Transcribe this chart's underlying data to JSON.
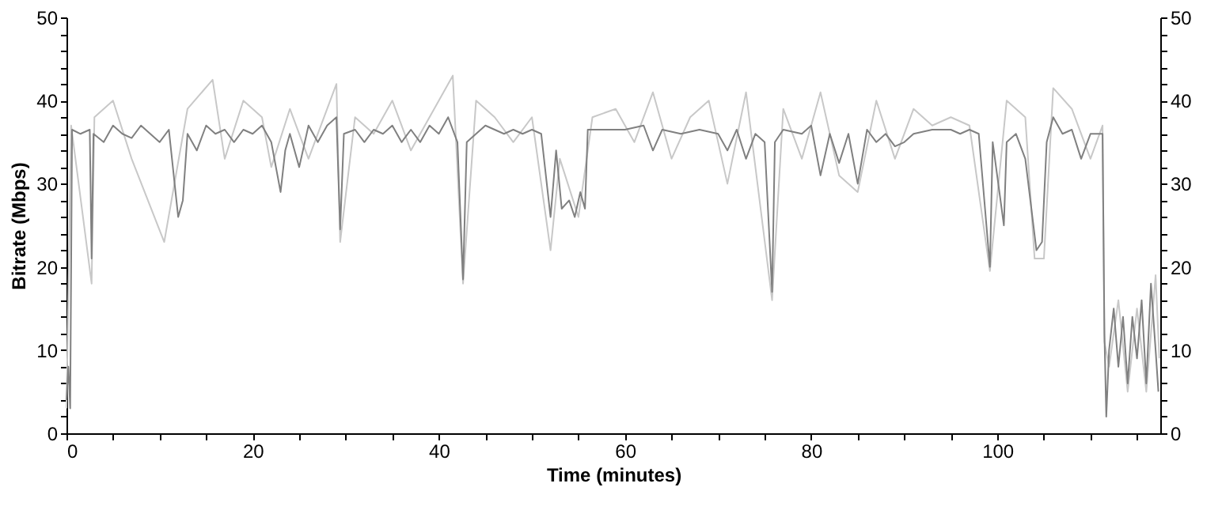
{
  "chart_data": {
    "type": "line",
    "xlabel": "Time (minutes)",
    "ylabel": "Bitrate (Mbps)",
    "xlim": [
      0,
      117.5
    ],
    "ylim": [
      0,
      50
    ],
    "y2lim": [
      0,
      50
    ],
    "xticks": [
      0,
      {
        "value": 5,
        "label": null
      },
      {
        "value": 10,
        "label": null
      },
      {
        "value": 15,
        "label": null
      },
      20,
      {
        "value": 25,
        "label": null
      },
      {
        "value": 30,
        "label": null
      },
      {
        "value": 35,
        "label": null
      },
      40,
      {
        "value": 45,
        "label": null
      },
      {
        "value": 50,
        "label": null
      },
      {
        "value": 55,
        "label": null
      },
      60,
      {
        "value": 65,
        "label": null
      },
      {
        "value": 70,
        "label": null
      },
      {
        "value": 75,
        "label": null
      },
      80,
      {
        "value": 85,
        "label": null
      },
      {
        "value": 90,
        "label": null
      },
      {
        "value": 95,
        "label": null
      },
      100,
      {
        "value": 105,
        "label": null
      },
      {
        "value": 110,
        "label": null
      },
      {
        "value": 115,
        "label": null
      }
    ],
    "yticks": [
      0,
      {
        "value": 2,
        "label": null
      },
      {
        "value": 4,
        "label": null
      },
      {
        "value": 6,
        "label": null
      },
      {
        "value": 8,
        "label": null
      },
      10,
      {
        "value": 12,
        "label": null
      },
      {
        "value": 14,
        "label": null
      },
      {
        "value": 16,
        "label": null
      },
      {
        "value": 18,
        "label": null
      },
      20,
      {
        "value": 22,
        "label": null
      },
      {
        "value": 24,
        "label": null
      },
      {
        "value": 26,
        "label": null
      },
      {
        "value": 28,
        "label": null
      },
      30,
      {
        "value": 32,
        "label": null
      },
      {
        "value": 34,
        "label": null
      },
      {
        "value": 36,
        "label": null
      },
      {
        "value": 38,
        "label": null
      },
      40,
      {
        "value": 42,
        "label": null
      },
      {
        "value": 44,
        "label": null
      },
      {
        "value": 46,
        "label": null
      },
      {
        "value": 48,
        "label": null
      },
      50
    ],
    "y2ticks": [
      0,
      {
        "value": 2,
        "label": null
      },
      {
        "value": 4,
        "label": null
      },
      {
        "value": 6,
        "label": null
      },
      {
        "value": 8,
        "label": null
      },
      10,
      {
        "value": 12,
        "label": null
      },
      {
        "value": 14,
        "label": null
      },
      {
        "value": 16,
        "label": null
      },
      {
        "value": 18,
        "label": null
      },
      20,
      {
        "value": 22,
        "label": null
      },
      {
        "value": 24,
        "label": null
      },
      {
        "value": 26,
        "label": null
      },
      {
        "value": 28,
        "label": null
      },
      30,
      {
        "value": 32,
        "label": null
      },
      {
        "value": 34,
        "label": null
      },
      {
        "value": 36,
        "label": null
      },
      {
        "value": 38,
        "label": null
      },
      40,
      {
        "value": 42,
        "label": null
      },
      {
        "value": 44,
        "label": null
      },
      {
        "value": 46,
        "label": null
      },
      {
        "value": 48,
        "label": null
      },
      50
    ],
    "grid": false,
    "marker": "none",
    "line_style": "solid",
    "series": [
      {
        "color": "#c8c8c8",
        "x": [
          0,
          0.5,
          2.7,
          3,
          5,
          7,
          10.5,
          13,
          15.7,
          17,
          19,
          21,
          22,
          24,
          26,
          29,
          29.4,
          31,
          33,
          35,
          37,
          40,
          41.5,
          42.6,
          44,
          46,
          48,
          50,
          52,
          53,
          55,
          56.5,
          59,
          61,
          63,
          65,
          67,
          69,
          71,
          73,
          75.8,
          77,
          79,
          81,
          83,
          85,
          87,
          89,
          91,
          93,
          95,
          97,
          99.2,
          101,
          103,
          104,
          105,
          106,
          108,
          110,
          111.3,
          111.5,
          112,
          113,
          114,
          115,
          116,
          117,
          117.4
        ],
        "values": [
          3,
          37,
          18,
          38,
          40,
          33,
          23,
          39,
          42.5,
          33,
          40,
          38,
          32,
          39,
          33,
          42,
          23,
          38,
          36,
          40,
          34,
          40,
          43,
          18,
          40,
          38,
          35,
          38,
          22,
          33,
          26,
          38,
          39,
          35,
          41,
          33,
          38,
          40,
          30,
          41,
          16,
          39,
          33,
          41,
          31,
          29,
          40,
          33,
          39,
          37,
          38,
          37,
          19.5,
          40,
          38,
          21,
          21,
          41.5,
          39,
          33,
          37,
          11,
          8,
          16,
          5,
          15,
          5,
          19,
          9
        ]
      },
      {
        "color": "#808080",
        "x": [
          0,
          0.2,
          0.4,
          0.6,
          1.5,
          2.5,
          2.7,
          2.9,
          4,
          5,
          6,
          7,
          8,
          9,
          10,
          11,
          12,
          12.5,
          13,
          14,
          15,
          16,
          17,
          18,
          19,
          20,
          21,
          22,
          23,
          23.5,
          24,
          25,
          26,
          27,
          28,
          29,
          29.4,
          29.8,
          31,
          32,
          33,
          34,
          35,
          36,
          37,
          38,
          39,
          40,
          41,
          42,
          42.6,
          43,
          44,
          45,
          46,
          47,
          48,
          49,
          50,
          51,
          52,
          52.6,
          53.2,
          54,
          54.6,
          55.2,
          55.7,
          56,
          58,
          60,
          62,
          63,
          64,
          66,
          68,
          70,
          71,
          72,
          73,
          74,
          75,
          75.8,
          76.1,
          77,
          79,
          80,
          81,
          82,
          83,
          84,
          85,
          86,
          87,
          88,
          89,
          90,
          91,
          93,
          95,
          96,
          97,
          98,
          99.2,
          99.5,
          100.7,
          101,
          102,
          103,
          104.2,
          104.8,
          105.3,
          106,
          107,
          108,
          109,
          110,
          111.3,
          111.5,
          111.7,
          112,
          112.5,
          113,
          113.5,
          114,
          114.5,
          115,
          115.5,
          116,
          116.5,
          117,
          117.3
        ],
        "values": [
          4,
          8,
          3,
          36.5,
          36,
          36.5,
          21,
          36,
          35,
          37,
          36,
          35.5,
          37,
          36,
          35,
          36.5,
          26,
          28,
          36,
          34,
          37,
          36,
          36.5,
          35,
          36.5,
          36,
          37,
          35,
          29,
          34,
          36,
          32,
          37,
          35,
          37,
          38,
          24.5,
          36,
          36.5,
          35,
          36.5,
          36,
          37,
          35,
          36.5,
          35,
          37,
          36,
          38,
          35,
          18.5,
          35,
          36,
          37,
          36.5,
          36,
          36.5,
          36,
          36.5,
          36,
          26,
          34,
          27,
          28,
          26,
          29,
          27,
          36.5,
          36.5,
          36.5,
          37,
          34,
          36.5,
          36,
          36.5,
          36,
          34,
          36.5,
          33,
          36,
          35,
          17,
          35,
          36.5,
          36,
          37,
          31,
          36,
          32.5,
          36,
          30,
          36.5,
          35,
          36,
          34.5,
          35,
          36,
          36.5,
          36.5,
          36,
          36.5,
          36,
          20,
          35,
          25,
          35,
          36,
          33,
          22,
          23,
          35,
          38,
          36,
          36.5,
          33,
          36,
          36,
          12,
          2,
          10,
          15,
          8,
          14,
          6,
          14,
          9,
          16,
          6,
          18,
          10,
          5
        ]
      }
    ]
  }
}
